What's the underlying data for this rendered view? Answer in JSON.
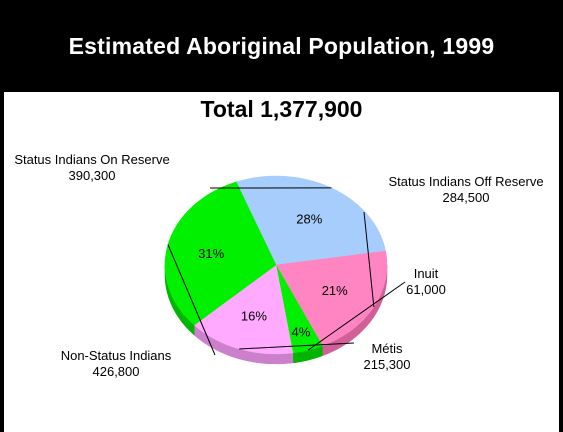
{
  "chart_data": {
    "type": "pie",
    "title": "Estimated Aboriginal Population, 1999",
    "subtitle": "Total  1,377,900",
    "slices": [
      {
        "label": "Status Indians On Reserve",
        "value": 390300,
        "value_label": "390,300",
        "percent_label": "28%",
        "color": "#a6cdfb",
        "side_color": "#7fa3cf"
      },
      {
        "label": "Status Indians Off Reserve",
        "value": 284500,
        "value_label": "284,500",
        "percent_label": "21%",
        "color": "#ff85c2",
        "side_color": "#d15f98"
      },
      {
        "label": "Inuit",
        "value": 61000,
        "value_label": "61,000",
        "percent_label": "4%",
        "color": "#00f000",
        "side_color": "#00b400"
      },
      {
        "label": "Métis",
        "value": 215300,
        "value_label": "215,300",
        "percent_label": "16%",
        "color": "#ffaaff",
        "side_color": "#cc80cc"
      },
      {
        "label": "Non-Status Indians",
        "value": 426800,
        "value_label": "426,800",
        "percent_label": "31%",
        "color": "#00f000",
        "side_color": "#00b400"
      }
    ]
  }
}
